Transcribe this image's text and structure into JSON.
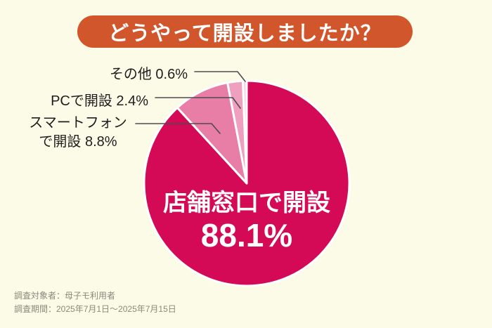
{
  "title": "どうやって開設しましたか？",
  "colors": {
    "background": "#fcfbe8",
    "banner": "#d2562b",
    "leader_line": "#4d4d4d",
    "label_text": "#1e1e1e",
    "footer_text": "#8b887a",
    "pie_stroke": "#ffffff"
  },
  "chart_data": {
    "type": "pie",
    "title": "どうやって開設しましたか？",
    "unit": "%",
    "start_angle_deg": 0,
    "direction": "clockwise",
    "slices": [
      {
        "key": "store-counter",
        "label": "店舗窓口で開設",
        "value": 88.1,
        "color": "#d40a56"
      },
      {
        "key": "smartphone",
        "label": "スマートフォンで開設",
        "value": 8.8,
        "color": "#e87da6"
      },
      {
        "key": "pc",
        "label": "PCで開設",
        "value": 2.4,
        "color": "#efa0bf"
      },
      {
        "key": "other",
        "label": "その他",
        "value": 0.6,
        "color": "#f5d2df"
      }
    ],
    "legend_position": "callout-labels",
    "grid": false
  },
  "center_label": {
    "line1": "店舗窓口で開設",
    "line2": "88.1%"
  },
  "callouts": {
    "other": "その他 0.6%",
    "pc": "PCで開設 2.4%",
    "smartphone_line1": "スマートフォン",
    "smartphone_line2": "で開設 8.8%"
  },
  "footer": {
    "line1": "調査対象者：母子モ利用者",
    "line2": "調査期間：2025年7月1日～2025年7月15日"
  }
}
